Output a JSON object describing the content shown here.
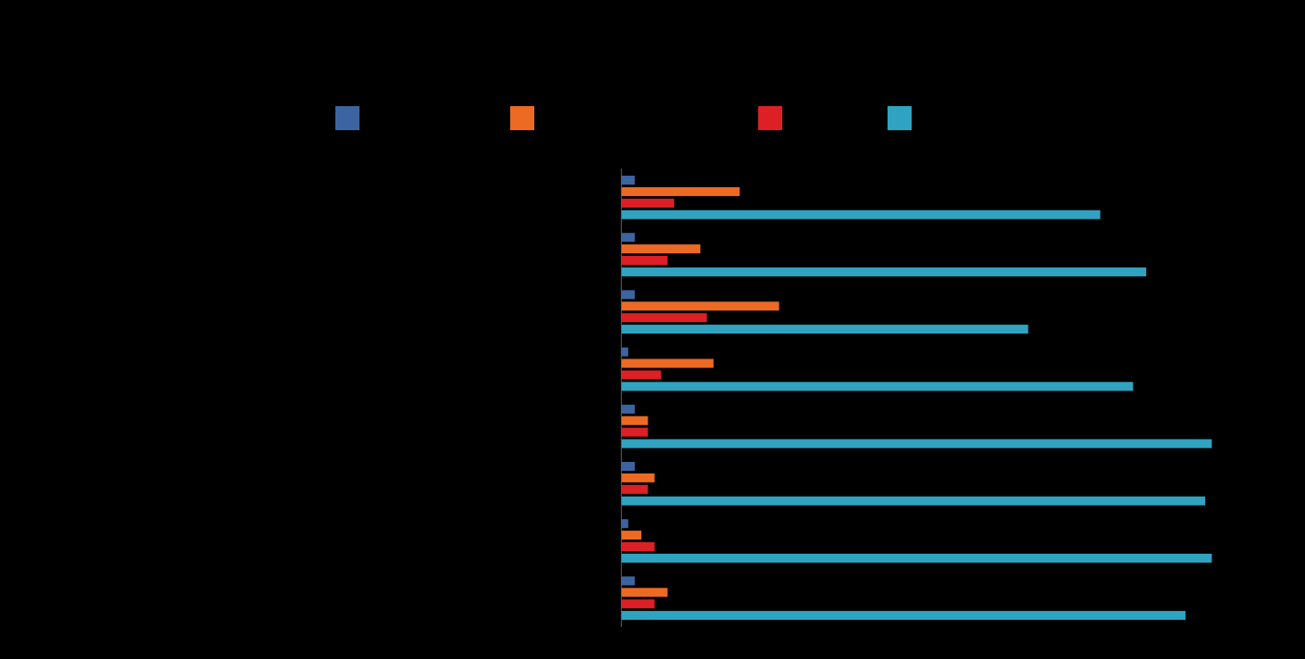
{
  "chart_data": {
    "type": "bar",
    "orientation": "horizontal",
    "title": "",
    "xlabel": "",
    "ylabel": "",
    "categories": [
      "",
      "",
      "",
      "",
      "",
      "",
      "",
      ""
    ],
    "series": [
      {
        "color": "#3c64a0",
        "values": [
          2,
          2,
          2,
          1,
          2,
          2,
          1,
          2
        ]
      },
      {
        "color": "#ec6a24",
        "values": [
          18,
          12,
          24,
          14,
          4,
          5,
          3,
          7
        ]
      },
      {
        "color": "#dd1f26",
        "values": [
          8,
          7,
          13,
          6,
          4,
          4,
          5,
          5
        ]
      },
      {
        "color": "#30a3c0",
        "values": [
          73,
          80,
          62,
          78,
          90,
          89,
          90,
          86
        ]
      }
    ],
    "xlim": [
      0,
      100
    ],
    "grid": false,
    "legend_position": "top"
  }
}
